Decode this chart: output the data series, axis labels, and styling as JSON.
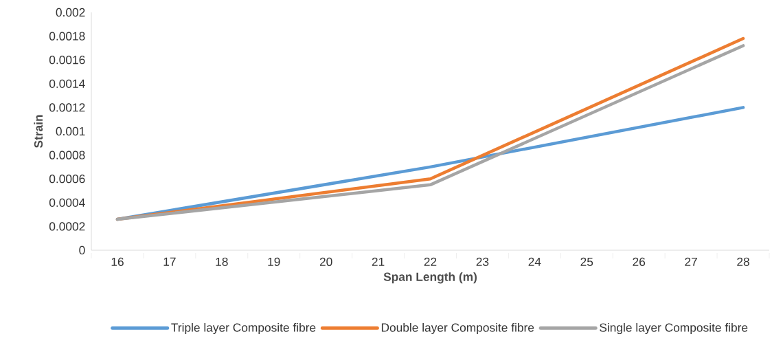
{
  "chart_data": {
    "type": "line",
    "xlabel": "Span Length (m)",
    "ylabel": "Strain",
    "xlim": [
      15.5,
      28.5
    ],
    "xticks": [
      16,
      17,
      18,
      19,
      20,
      21,
      22,
      23,
      24,
      25,
      26,
      27,
      28
    ],
    "ylim": [
      0,
      0.002
    ],
    "yticks": [
      0,
      0.0002,
      0.0004,
      0.0006,
      0.0008,
      0.001,
      0.0012,
      0.0014,
      0.0016,
      0.0018,
      0.002
    ],
    "x": [
      16,
      22,
      28
    ],
    "series": [
      {
        "name": "Triple layer Composite fibre",
        "color": "#5b9bd5",
        "values": [
          0.00026,
          0.0007,
          0.0012
        ]
      },
      {
        "name": "Double layer Composite fibre",
        "color": "#ed7d31",
        "values": [
          0.00026,
          0.0006,
          0.00178
        ]
      },
      {
        "name": "Single layer Composite fibre",
        "color": "#a5a5a5",
        "values": [
          0.00026,
          0.00055,
          0.00172
        ]
      }
    ],
    "legend": "bottom",
    "grid": false,
    "marker": "none",
    "line_style": "solid"
  }
}
